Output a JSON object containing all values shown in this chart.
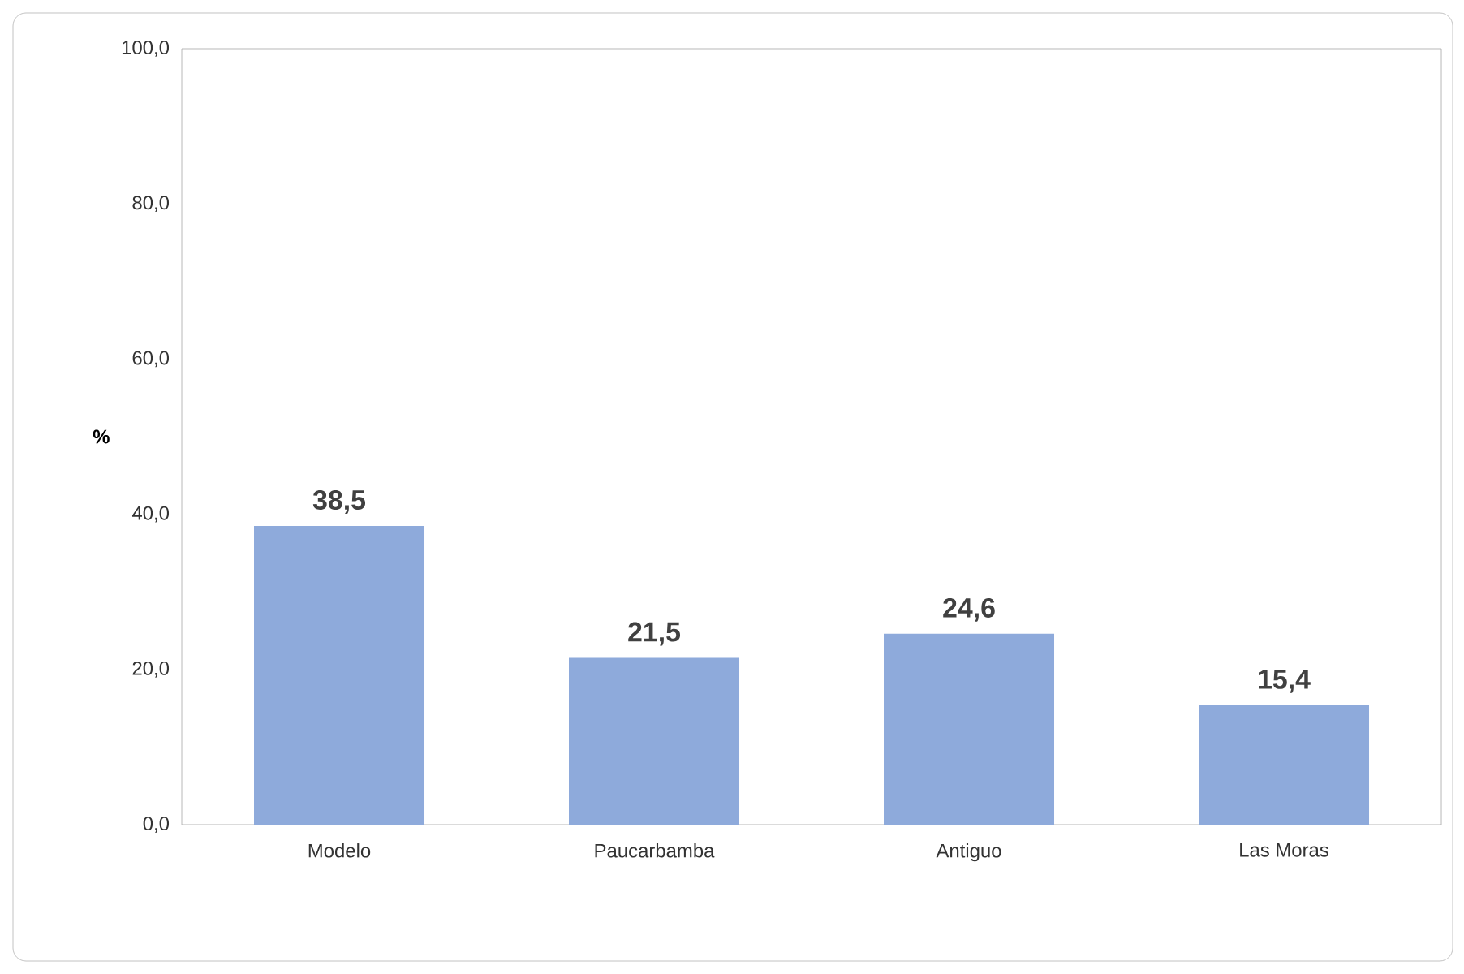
{
  "chart_data": {
    "type": "bar",
    "ylabel": "%",
    "categories": [
      "Modelo",
      "Paucarbamba",
      "Antiguo",
      "Las Moras"
    ],
    "values": [
      38.5,
      21.5,
      24.6,
      15.4
    ],
    "value_labels": [
      "38,5",
      "21,5",
      "24,6",
      "15,4"
    ],
    "color": "#8eaadb",
    "ylim": [
      0,
      100
    ],
    "yticks": [
      {
        "value": 0,
        "label": "0,0"
      },
      {
        "value": 20,
        "label": "20,0"
      },
      {
        "value": 40,
        "label": "40,0"
      },
      {
        "value": 60,
        "label": "60,0"
      },
      {
        "value": 80,
        "label": "80,0"
      },
      {
        "value": 100,
        "label": "100,0"
      }
    ],
    "grid": false
  }
}
